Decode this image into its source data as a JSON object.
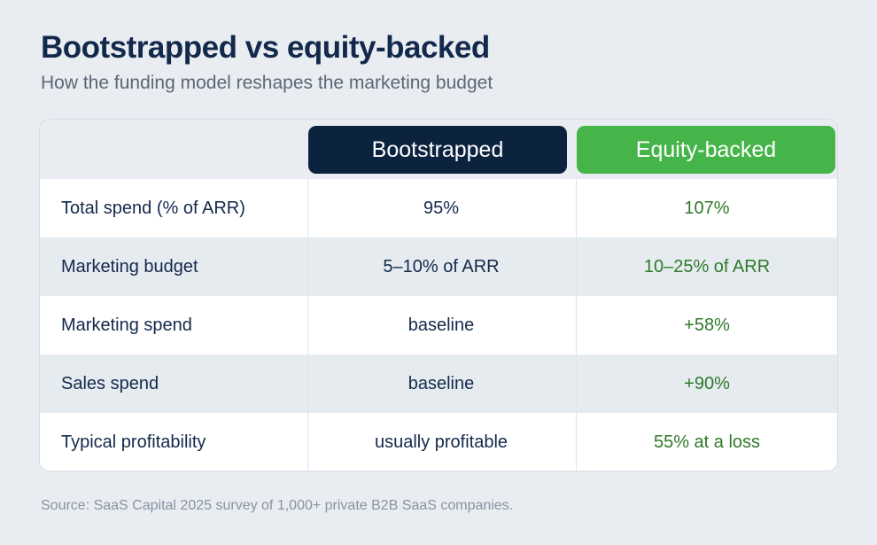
{
  "title": "Bootstrapped vs equity-backed",
  "subtitle": "How the funding model reshapes the marketing budget",
  "columns": {
    "bootstrapped": "Bootstrapped",
    "equity": "Equity-backed"
  },
  "colors": {
    "bootstrapped_header": "#0c2340",
    "equity_header": "#45b549",
    "equity_text": "#2f7a2a",
    "title": "#13294b"
  },
  "chart_data": {
    "type": "table",
    "title": "Bootstrapped vs equity-backed",
    "subtitle": "How the funding model reshapes the marketing budget",
    "columns": [
      "",
      "Bootstrapped",
      "Equity-backed"
    ],
    "rows": [
      {
        "label": "Total spend (% of ARR)",
        "bootstrapped": "95%",
        "equity": "107%"
      },
      {
        "label": "Marketing budget",
        "bootstrapped": "5–10% of ARR",
        "equity": "10–25% of ARR"
      },
      {
        "label": "Marketing spend",
        "bootstrapped": "baseline",
        "equity": "+58%"
      },
      {
        "label": "Sales spend",
        "bootstrapped": "baseline",
        "equity": "+90%"
      },
      {
        "label": "Typical profitability",
        "bootstrapped": "usually profitable",
        "equity": "55% at a loss"
      }
    ]
  },
  "source": "Source: SaaS Capital 2025 survey of 1,000+ private B2B SaaS companies."
}
